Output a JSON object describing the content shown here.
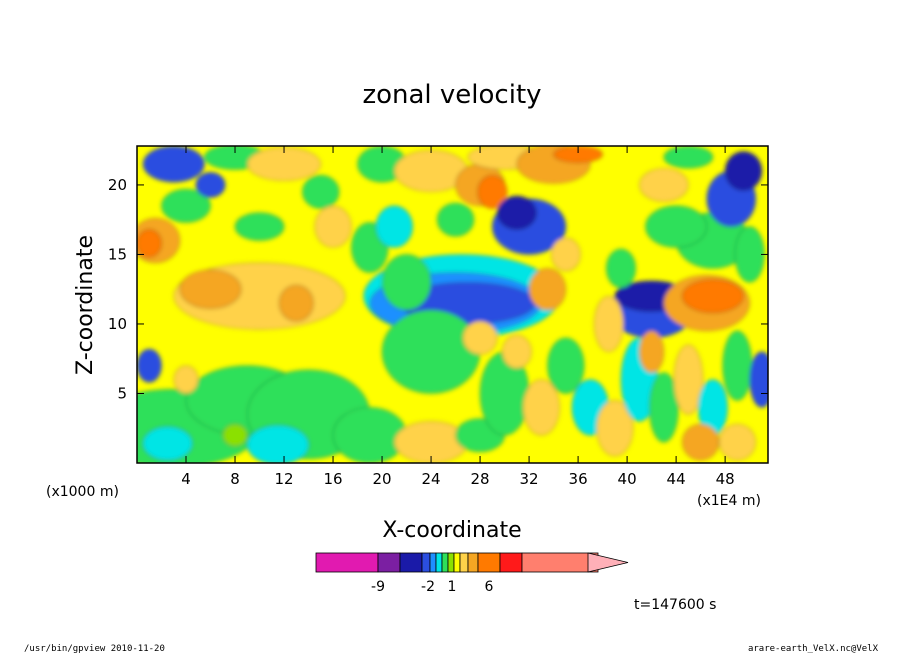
{
  "chart_data": {
    "type": "heatmap",
    "title": "zonal velocity",
    "xlabel": "X-coordinate",
    "ylabel": "Z-coordinate",
    "x_unit_left": "(x1000 m)",
    "x_unit_right": "(x1E4 m)",
    "xlim": [
      0,
      51.5
    ],
    "ylim": [
      0,
      22.8
    ],
    "x_ticks": [
      4,
      8,
      12,
      16,
      20,
      24,
      28,
      32,
      36,
      40,
      44,
      48
    ],
    "y_ticks": [
      5,
      10,
      15,
      20
    ],
    "colorbar_labels": [
      {
        "value": -9,
        "label": "-9"
      },
      {
        "value": -2,
        "label": "-2"
      },
      {
        "value": 1,
        "label": "1"
      },
      {
        "value": 6,
        "label": "6"
      }
    ],
    "colorbar_colors": [
      "#e11ab0",
      "#7b1fa2",
      "#1a1aa8",
      "#2b4ee0",
      "#1e90ff",
      "#00e5e5",
      "#2ee05a",
      "#8be000",
      "#ffff00",
      "#ffd24a",
      "#f5a623",
      "#ff7a00",
      "#ff1a1a",
      "#ff7f6e",
      "#ffb0b8"
    ],
    "timestamp": "t=147600 s",
    "grid": false
  },
  "footer": {
    "left": "/usr/bin/gpview  2010-11-20",
    "right": "arare-earth_VelX.nc@VelX"
  }
}
